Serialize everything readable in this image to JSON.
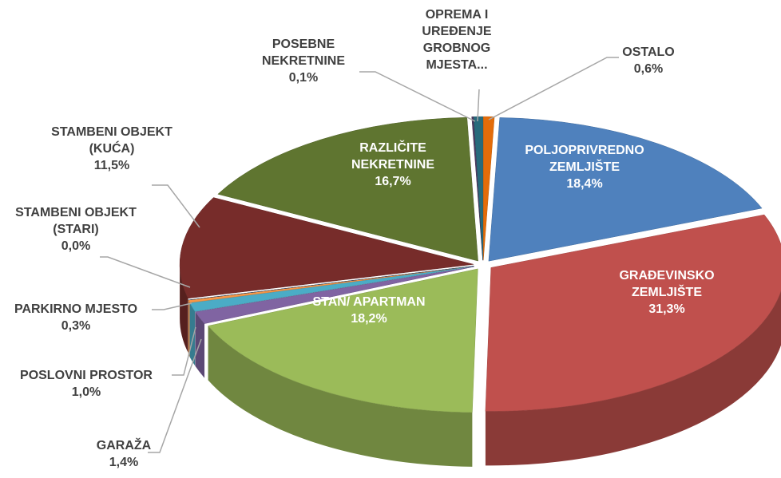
{
  "chart_data": {
    "type": "pie3d",
    "categories": [
      "OSTALO",
      "POLJOPRIVREDNO ZEMLJIŠTE",
      "GRAĐEVINSKO ZEMLJIŠTE",
      "STAN/ APARTMAN",
      "GARAŽA",
      "POSLOVNI PROSTOR",
      "PARKIRNO MJESTO",
      "STAMBENI OBJEKT (STARI)",
      "STAMBENI OBJEKT (KUĆA)",
      "RAZLIČITE NEKRETNINE",
      "POSEBNE NEKRETNINE",
      "OPREMA I UREĐENJE GROBNOG MJESTA..."
    ],
    "values": [
      0.6,
      18.4,
      31.3,
      18.2,
      1.4,
      1.0,
      0.3,
      0.0,
      11.5,
      16.7,
      0.1,
      0.5
    ],
    "value_labels": [
      "0,6%",
      "18,4%",
      "31,3%",
      "18,2%",
      "1,4%",
      "1,0%",
      "0,3%",
      "0,0%",
      "11,5%",
      "16,7%",
      "0,1%",
      null
    ],
    "colors": [
      "#e36c0a",
      "#4f81bd",
      "#c0504d",
      "#9bbb59",
      "#8064a2",
      "#4bacc6",
      "#f79646",
      "#2c4d75",
      "#772c2a",
      "#5f7530",
      "#4d3b62",
      "#276a7c"
    ]
  }
}
